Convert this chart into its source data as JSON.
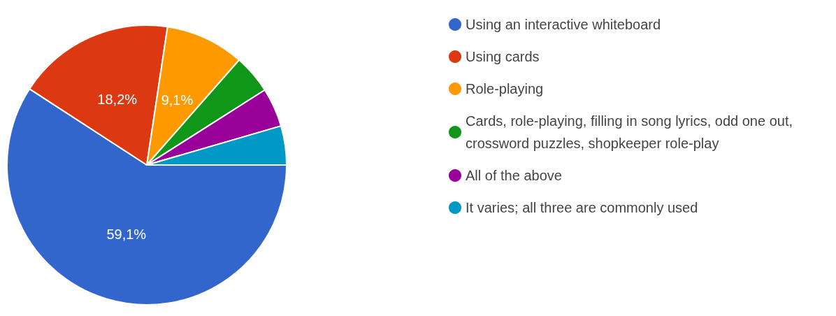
{
  "chart_data": {
    "type": "pie",
    "categories": [
      "Using an interactive whiteboard",
      "Using cards",
      "Role-playing",
      "Cards, role-playing, filling in song lyrics, odd one out, crossword puzzles, shopkeeper role-play",
      "All of the above",
      "It varies; all three are commonly used"
    ],
    "values": [
      59.1,
      18.2,
      9.1,
      4.5,
      4.5,
      4.5
    ],
    "colors": [
      "#3366cc",
      "#dc3912",
      "#ff9900",
      "#109618",
      "#990099",
      "#0099c6"
    ],
    "value_labels": [
      "59,1%",
      "18,2%",
      "9,1%",
      null,
      null,
      null
    ],
    "legend": "right"
  }
}
